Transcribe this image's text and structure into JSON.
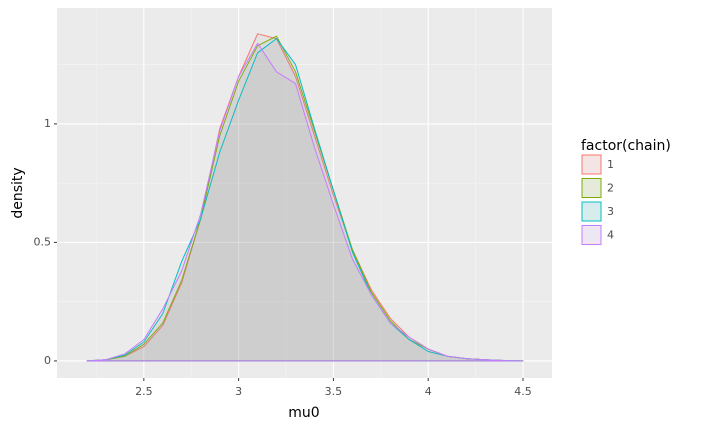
{
  "chart_data": {
    "type": "density",
    "x_label": "mu0",
    "y_label": "density",
    "legend_title": "factor(chain)",
    "x": [
      2.2,
      2.3,
      2.4,
      2.5,
      2.6,
      2.7,
      2.8,
      2.9,
      3.0,
      3.1,
      3.2,
      3.3,
      3.4,
      3.5,
      3.6,
      3.7,
      3.8,
      3.9,
      4.0,
      4.1,
      4.2,
      4.3,
      4.4,
      4.5
    ],
    "series": [
      {
        "name": "1",
        "color": "#F8766D",
        "values": [
          0,
          0.005,
          0.02,
          0.06,
          0.15,
          0.33,
          0.6,
          0.98,
          1.2,
          1.38,
          1.36,
          1.2,
          0.95,
          0.7,
          0.47,
          0.3,
          0.18,
          0.1,
          0.05,
          0.02,
          0.01,
          0.005,
          0.002,
          0
        ]
      },
      {
        "name": "2",
        "color": "#7CAE00",
        "values": [
          0,
          0.005,
          0.02,
          0.07,
          0.16,
          0.34,
          0.6,
          0.95,
          1.18,
          1.33,
          1.37,
          1.22,
          0.97,
          0.72,
          0.47,
          0.29,
          0.17,
          0.09,
          0.05,
          0.02,
          0.01,
          0.005,
          0.002,
          0
        ]
      },
      {
        "name": "3",
        "color": "#00BFC4",
        "values": [
          0,
          0.005,
          0.025,
          0.08,
          0.2,
          0.42,
          0.6,
          0.88,
          1.1,
          1.3,
          1.36,
          1.25,
          0.98,
          0.72,
          0.46,
          0.28,
          0.16,
          0.09,
          0.04,
          0.02,
          0.01,
          0.005,
          0.002,
          0
        ]
      },
      {
        "name": "4",
        "color": "#C77CFF",
        "values": [
          0,
          0.005,
          0.03,
          0.09,
          0.22,
          0.38,
          0.62,
          0.97,
          1.2,
          1.34,
          1.22,
          1.17,
          0.9,
          0.66,
          0.43,
          0.28,
          0.16,
          0.1,
          0.05,
          0.02,
          0.01,
          0.005,
          0.002,
          0
        ]
      }
    ],
    "fill": "#999999",
    "xlim": [
      2.042,
      4.653
    ],
    "ylim": [
      -0.072,
      1.489
    ],
    "xticks": [
      2.5,
      3,
      3.5,
      4,
      4.5
    ],
    "yticks": [
      0,
      0.5,
      1
    ],
    "grid": true
  }
}
